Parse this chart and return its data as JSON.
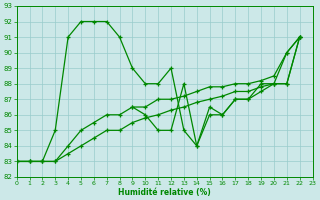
{
  "xlabel": "Humidité relative (%)",
  "xlim": [
    0,
    23
  ],
  "ylim": [
    82,
    93
  ],
  "yticks": [
    82,
    83,
    84,
    85,
    86,
    87,
    88,
    89,
    90,
    91,
    92,
    93
  ],
  "xticks": [
    0,
    1,
    2,
    3,
    4,
    5,
    6,
    7,
    8,
    9,
    10,
    11,
    12,
    13,
    14,
    15,
    16,
    17,
    18,
    19,
    20,
    21,
    22,
    23
  ],
  "background_color": "#cce8e8",
  "grid_color": "#99cccc",
  "line_color": "#008800",
  "s1_x": [
    0,
    1,
    2,
    3,
    4,
    5,
    6,
    7,
    8,
    9,
    10,
    11,
    12,
    13,
    14,
    15,
    16,
    17,
    18,
    19,
    20,
    21,
    22
  ],
  "s1_y": [
    83,
    83,
    83,
    85,
    91,
    92,
    92,
    92,
    91,
    89,
    88,
    88,
    89,
    85,
    84,
    86,
    86,
    87,
    87,
    88,
    88,
    90,
    91
  ],
  "s2_x": [
    0,
    1,
    2,
    3,
    4,
    5,
    6,
    7,
    8,
    9,
    10,
    11,
    12,
    13,
    14,
    15,
    16,
    17,
    18,
    19,
    20,
    21,
    22
  ],
  "s2_y": [
    83,
    83,
    83,
    83,
    84,
    85,
    85.5,
    86,
    86,
    86.5,
    86.5,
    87,
    87,
    87.2,
    87.5,
    87.8,
    87.8,
    88,
    88,
    88.2,
    88.5,
    90,
    91
  ],
  "s3_x": [
    0,
    1,
    2,
    3,
    4,
    5,
    6,
    7,
    8,
    9,
    10,
    11,
    12,
    13,
    14,
    15,
    16,
    17,
    18,
    19,
    20,
    21,
    22
  ],
  "s3_y": [
    83,
    83,
    83,
    83,
    83.5,
    84,
    84.5,
    85,
    85,
    85.5,
    85.8,
    86,
    86.3,
    86.5,
    86.8,
    87,
    87.2,
    87.5,
    87.5,
    87.8,
    88,
    88,
    91
  ],
  "s4_x": [
    9,
    10,
    11,
    12,
    13,
    14,
    15,
    16,
    17,
    18,
    19,
    20,
    21,
    22
  ],
  "s4_y": [
    86.5,
    86,
    85,
    85,
    88,
    84,
    86.5,
    86,
    87,
    87,
    87.5,
    88,
    88,
    91
  ]
}
